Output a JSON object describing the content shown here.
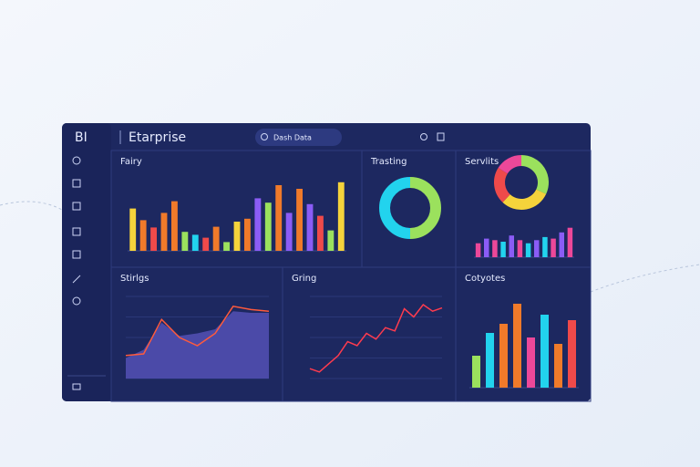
{
  "header": {
    "logo": "BI",
    "title": "Etarprise",
    "search": "Dash Data"
  },
  "panels": [
    {
      "title": "Fairy",
      "charts": [
        {
          "type": "bar",
          "ylim": [
            0,
            100
          ],
          "values": [
            58,
            42,
            32,
            52,
            68,
            26,
            22,
            18,
            33,
            12,
            40,
            44,
            72,
            66,
            90,
            52,
            85,
            64,
            48,
            28,
            94
          ],
          "colors": [
            "#f5d33b",
            "#f07a2a",
            "#ef4a4a",
            "#f07a2a",
            "#f07a2a",
            "#9be15d",
            "#22d3ee",
            "#ef4a4a",
            "#f07a2a",
            "#9be15d",
            "#f5d33b",
            "#f07a2a",
            "#8b5cf6",
            "#9be15d",
            "#f07a2a",
            "#8b5cf6",
            "#f07a2a",
            "#8b5cf6",
            "#ef4a4a",
            "#9be15d",
            "#f5d33b"
          ]
        }
      ]
    },
    {
      "title": "Trasting",
      "charts": [
        {
          "type": "donut",
          "values": [
            50,
            50
          ],
          "colors": [
            "#9be15d",
            "#22d3ee"
          ]
        }
      ]
    },
    {
      "title": "Servlits",
      "charts": [
        {
          "type": "donut",
          "values": [
            32,
            30,
            22,
            16
          ],
          "colors": [
            "#9be15d",
            "#f5d33b",
            "#ef4a4a",
            "#ec4899"
          ]
        },
        {
          "type": "bar",
          "ylim": [
            0,
            100
          ],
          "values": [
            45,
            60,
            55,
            50,
            70,
            55,
            45,
            55,
            65,
            60,
            80,
            95
          ],
          "colors": [
            "#ec4899",
            "#8b5cf6",
            "#ec4899",
            "#22d3ee",
            "#8b5cf6",
            "#ec4899",
            "#22d3ee",
            "#8b5cf6",
            "#22d3ee",
            "#ec4899",
            "#8b5cf6",
            "#ec4899"
          ]
        }
      ]
    },
    {
      "title": "Stirlgs",
      "charts": [
        {
          "type": "area",
          "ylim": [
            0,
            100
          ],
          "series": [
            {
              "color": "#4b4aa8",
              "area": true,
              "values": [
                25,
                35,
                68,
                52,
                55,
                60,
                82,
                80,
                80
              ]
            },
            {
              "color": "#ff5a3c",
              "values": [
                28,
                30,
                72,
                50,
                40,
                55,
                88,
                84,
                82
              ]
            }
          ]
        }
      ]
    },
    {
      "title": "Gring",
      "charts": [
        {
          "type": "area",
          "ylim": [
            0,
            100
          ],
          "series": [
            {
              "color": "#ff3b4e",
              "values": [
                12,
                8,
                18,
                28,
                45,
                40,
                55,
                48,
                62,
                58,
                85,
                75,
                90,
                82,
                86
              ]
            }
          ]
        }
      ]
    },
    {
      "title": "Cotyotes",
      "charts": [
        {
          "type": "bar",
          "ylim": [
            0,
            100
          ],
          "values": [
            35,
            60,
            70,
            92,
            55,
            80,
            48,
            74
          ],
          "colors": [
            "#9be15d",
            "#22d3ee",
            "#f07a2a",
            "#f07a2a",
            "#ec4899",
            "#22d3ee",
            "#f07a2a",
            "#ef4a4a"
          ]
        }
      ]
    }
  ]
}
